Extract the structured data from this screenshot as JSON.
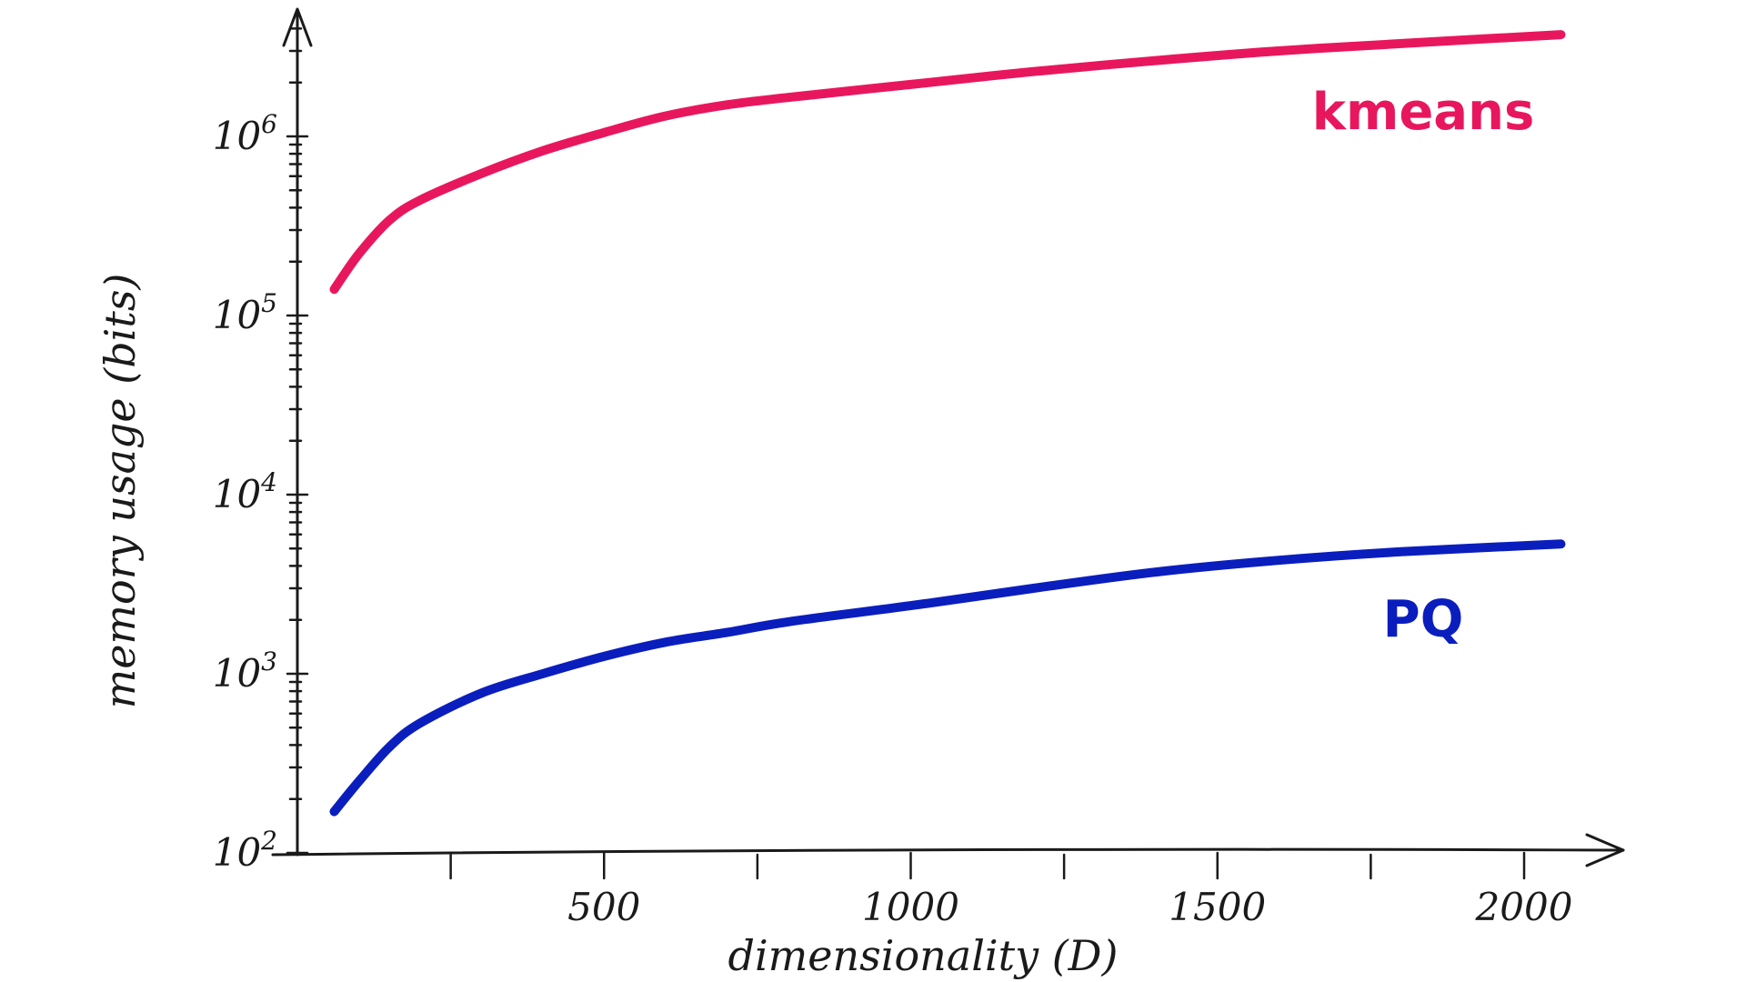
{
  "chart_data": {
    "type": "line",
    "title": "",
    "xlabel": "dimensionality (D)",
    "ylabel": "memory usage (bits)",
    "xlim": [
      0,
      2150
    ],
    "ylim": [
      100,
      10000000
    ],
    "yscale": "log",
    "x_ticks": [
      500,
      1000,
      1500,
      2000
    ],
    "x_minor_ticks": [
      250,
      750,
      1250,
      1750
    ],
    "y_ticks": [
      {
        "value": 100,
        "base": "10",
        "exp": "2"
      },
      {
        "value": 1000,
        "base": "10",
        "exp": "3"
      },
      {
        "value": 10000,
        "base": "10",
        "exp": "4"
      },
      {
        "value": 100000,
        "base": "10",
        "exp": "5"
      },
      {
        "value": 1000000,
        "base": "10",
        "exp": "6"
      }
    ],
    "grid": false,
    "legend": "inline labels",
    "series": [
      {
        "name": "kmeans",
        "color": "#e8175d",
        "x": [
          60,
          100,
          150,
          200,
          300,
          400,
          500,
          600,
          700,
          800,
          1000,
          1200,
          1400,
          1600,
          1800,
          2060
        ],
        "y": [
          140000,
          220000,
          340000,
          440000,
          620000,
          830000,
          1050000,
          1300000,
          1500000,
          1650000,
          1950000,
          2300000,
          2650000,
          3000000,
          3300000,
          3700000
        ]
      },
      {
        "name": "PQ",
        "color": "#0a1ebe",
        "x": [
          60,
          100,
          150,
          200,
          300,
          400,
          500,
          600,
          700,
          800,
          1000,
          1200,
          1400,
          1600,
          1800,
          2060
        ],
        "y": [
          170,
          250,
          390,
          530,
          780,
          1000,
          1250,
          1500,
          1700,
          1950,
          2400,
          3000,
          3700,
          4300,
          4800,
          5300
        ]
      }
    ]
  }
}
